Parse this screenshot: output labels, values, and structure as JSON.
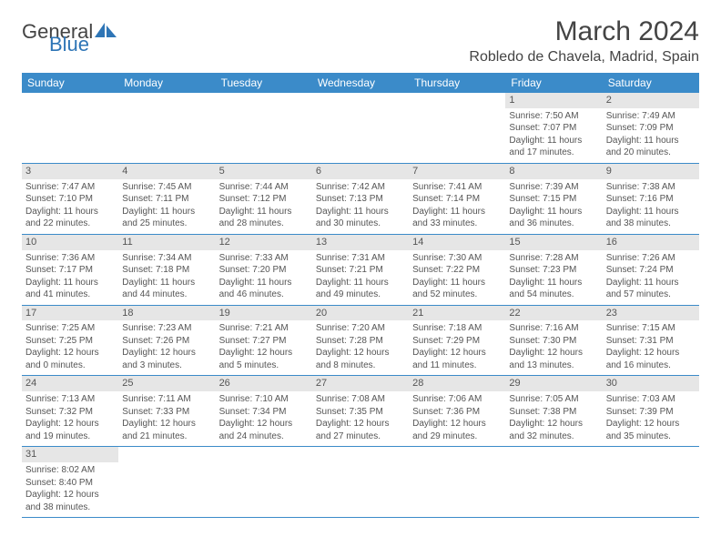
{
  "brand": {
    "part1": "General",
    "part2": "Blue"
  },
  "title": "March 2024",
  "location": "Robledo de Chavela, Madrid, Spain",
  "colors": {
    "header_bg": "#3b8bc9",
    "header_text": "#ffffff",
    "daynum_bg": "#e6e6e6",
    "rule": "#3b8bc9",
    "brand_blue": "#2e75b6",
    "text": "#555555"
  },
  "weekdays": [
    "Sunday",
    "Monday",
    "Tuesday",
    "Wednesday",
    "Thursday",
    "Friday",
    "Saturday"
  ],
  "first_weekday_index": 5,
  "days": [
    {
      "n": 1,
      "sunrise": "7:50 AM",
      "sunset": "7:07 PM",
      "daylight": "11 hours and 17 minutes."
    },
    {
      "n": 2,
      "sunrise": "7:49 AM",
      "sunset": "7:09 PM",
      "daylight": "11 hours and 20 minutes."
    },
    {
      "n": 3,
      "sunrise": "7:47 AM",
      "sunset": "7:10 PM",
      "daylight": "11 hours and 22 minutes."
    },
    {
      "n": 4,
      "sunrise": "7:45 AM",
      "sunset": "7:11 PM",
      "daylight": "11 hours and 25 minutes."
    },
    {
      "n": 5,
      "sunrise": "7:44 AM",
      "sunset": "7:12 PM",
      "daylight": "11 hours and 28 minutes."
    },
    {
      "n": 6,
      "sunrise": "7:42 AM",
      "sunset": "7:13 PM",
      "daylight": "11 hours and 30 minutes."
    },
    {
      "n": 7,
      "sunrise": "7:41 AM",
      "sunset": "7:14 PM",
      "daylight": "11 hours and 33 minutes."
    },
    {
      "n": 8,
      "sunrise": "7:39 AM",
      "sunset": "7:15 PM",
      "daylight": "11 hours and 36 minutes."
    },
    {
      "n": 9,
      "sunrise": "7:38 AM",
      "sunset": "7:16 PM",
      "daylight": "11 hours and 38 minutes."
    },
    {
      "n": 10,
      "sunrise": "7:36 AM",
      "sunset": "7:17 PM",
      "daylight": "11 hours and 41 minutes."
    },
    {
      "n": 11,
      "sunrise": "7:34 AM",
      "sunset": "7:18 PM",
      "daylight": "11 hours and 44 minutes."
    },
    {
      "n": 12,
      "sunrise": "7:33 AM",
      "sunset": "7:20 PM",
      "daylight": "11 hours and 46 minutes."
    },
    {
      "n": 13,
      "sunrise": "7:31 AM",
      "sunset": "7:21 PM",
      "daylight": "11 hours and 49 minutes."
    },
    {
      "n": 14,
      "sunrise": "7:30 AM",
      "sunset": "7:22 PM",
      "daylight": "11 hours and 52 minutes."
    },
    {
      "n": 15,
      "sunrise": "7:28 AM",
      "sunset": "7:23 PM",
      "daylight": "11 hours and 54 minutes."
    },
    {
      "n": 16,
      "sunrise": "7:26 AM",
      "sunset": "7:24 PM",
      "daylight": "11 hours and 57 minutes."
    },
    {
      "n": 17,
      "sunrise": "7:25 AM",
      "sunset": "7:25 PM",
      "daylight": "12 hours and 0 minutes."
    },
    {
      "n": 18,
      "sunrise": "7:23 AM",
      "sunset": "7:26 PM",
      "daylight": "12 hours and 3 minutes."
    },
    {
      "n": 19,
      "sunrise": "7:21 AM",
      "sunset": "7:27 PM",
      "daylight": "12 hours and 5 minutes."
    },
    {
      "n": 20,
      "sunrise": "7:20 AM",
      "sunset": "7:28 PM",
      "daylight": "12 hours and 8 minutes."
    },
    {
      "n": 21,
      "sunrise": "7:18 AM",
      "sunset": "7:29 PM",
      "daylight": "12 hours and 11 minutes."
    },
    {
      "n": 22,
      "sunrise": "7:16 AM",
      "sunset": "7:30 PM",
      "daylight": "12 hours and 13 minutes."
    },
    {
      "n": 23,
      "sunrise": "7:15 AM",
      "sunset": "7:31 PM",
      "daylight": "12 hours and 16 minutes."
    },
    {
      "n": 24,
      "sunrise": "7:13 AM",
      "sunset": "7:32 PM",
      "daylight": "12 hours and 19 minutes."
    },
    {
      "n": 25,
      "sunrise": "7:11 AM",
      "sunset": "7:33 PM",
      "daylight": "12 hours and 21 minutes."
    },
    {
      "n": 26,
      "sunrise": "7:10 AM",
      "sunset": "7:34 PM",
      "daylight": "12 hours and 24 minutes."
    },
    {
      "n": 27,
      "sunrise": "7:08 AM",
      "sunset": "7:35 PM",
      "daylight": "12 hours and 27 minutes."
    },
    {
      "n": 28,
      "sunrise": "7:06 AM",
      "sunset": "7:36 PM",
      "daylight": "12 hours and 29 minutes."
    },
    {
      "n": 29,
      "sunrise": "7:05 AM",
      "sunset": "7:38 PM",
      "daylight": "12 hours and 32 minutes."
    },
    {
      "n": 30,
      "sunrise": "7:03 AM",
      "sunset": "7:39 PM",
      "daylight": "12 hours and 35 minutes."
    },
    {
      "n": 31,
      "sunrise": "8:02 AM",
      "sunset": "8:40 PM",
      "daylight": "12 hours and 38 minutes."
    }
  ],
  "labels": {
    "sunrise": "Sunrise:",
    "sunset": "Sunset:",
    "daylight": "Daylight:"
  }
}
